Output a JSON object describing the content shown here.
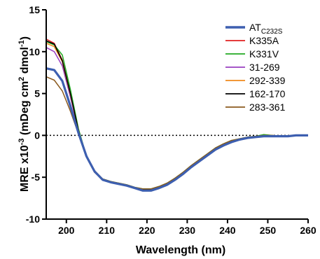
{
  "chart_data": {
    "type": "line",
    "xlabel": "Wavelength (nm)",
    "ylabel_prefix": "MRE x10",
    "ylabel_exp1": "-3",
    "ylabel_mid1": " (mDeg cm",
    "ylabel_exp2": "2",
    "ylabel_mid2": " dmol",
    "ylabel_exp3": "-1",
    "ylabel_suffix": ")",
    "xlim": [
      195,
      260
    ],
    "ylim": [
      -10,
      15
    ],
    "xticks": [
      200,
      210,
      220,
      230,
      240,
      250,
      260
    ],
    "yticks": [
      -10,
      -5,
      0,
      5,
      10,
      15
    ],
    "zero_line": "dotted",
    "legend_position": "top-right",
    "series": [
      {
        "name": "AT",
        "name_sub": "C232S",
        "color": "#3d5fb0",
        "thick": true,
        "x": [
          195,
          197,
          199,
          201,
          203,
          205,
          207,
          209,
          211,
          213,
          215,
          217,
          219,
          221,
          223,
          225,
          227,
          229,
          231,
          233,
          235,
          237,
          239,
          241,
          243,
          245,
          247,
          249,
          251,
          253,
          255,
          257,
          259,
          260
        ],
        "y": [
          8,
          7.8,
          6.5,
          3.5,
          0.3,
          -2.5,
          -4.3,
          -5.3,
          -5.6,
          -5.8,
          -6,
          -6.3,
          -6.6,
          -6.6,
          -6.3,
          -5.9,
          -5.3,
          -4.6,
          -3.8,
          -3.1,
          -2.4,
          -1.7,
          -1.2,
          -0.8,
          -0.5,
          -0.3,
          -0.2,
          -0.1,
          -0.1,
          -0.1,
          -0.1,
          0,
          0,
          0
        ]
      },
      {
        "name": "K335A",
        "color": "#e02020",
        "thick": false,
        "x": [
          195,
          197,
          199,
          201,
          203,
          205,
          207,
          209,
          211,
          213,
          215,
          217,
          219,
          221,
          223,
          225,
          227,
          229,
          231,
          233,
          235,
          237,
          239,
          241,
          243,
          245,
          247,
          249,
          251,
          253,
          255,
          257,
          259,
          260
        ],
        "y": [
          11.5,
          11,
          9,
          5,
          0.6,
          -2.6,
          -4.4,
          -5.3,
          -5.6,
          -5.8,
          -6,
          -6.3,
          -6.5,
          -6.5,
          -6.2,
          -5.8,
          -5.2,
          -4.5,
          -3.7,
          -3,
          -2.3,
          -1.6,
          -1.1,
          -0.7,
          -0.4,
          -0.3,
          -0.2,
          0,
          0,
          -0.1,
          -0.1,
          0,
          0,
          0
        ]
      },
      {
        "name": "K331V",
        "color": "#22aa22",
        "thick": false,
        "x": [
          195,
          197,
          199,
          201,
          203,
          205,
          207,
          209,
          211,
          213,
          215,
          217,
          219,
          221,
          223,
          225,
          227,
          229,
          231,
          233,
          235,
          237,
          239,
          241,
          243,
          245,
          247,
          249,
          251,
          253,
          255,
          257,
          259,
          260
        ],
        "y": [
          11.2,
          10.8,
          9.6,
          5.5,
          0.8,
          -2.5,
          -4.3,
          -5.2,
          -5.5,
          -5.7,
          -5.9,
          -6.2,
          -6.4,
          -6.4,
          -6.1,
          -5.7,
          -5.1,
          -4.4,
          -3.6,
          -2.9,
          -2.2,
          -1.5,
          -1,
          -0.6,
          -0.4,
          -0.2,
          -0.1,
          0.1,
          0,
          -0.1,
          -0.1,
          0,
          0,
          0
        ]
      },
      {
        "name": "31-269",
        "color": "#9a3fc0",
        "thick": false,
        "x": [
          195,
          197,
          199,
          201,
          203,
          205,
          207,
          209,
          211,
          213,
          215,
          217,
          219,
          221,
          223,
          225,
          227,
          229,
          231,
          233,
          235,
          237,
          239,
          241,
          243,
          245,
          247,
          249,
          251,
          253,
          255,
          257,
          259,
          260
        ],
        "y": [
          10.5,
          10,
          8.3,
          4.6,
          0.5,
          -2.6,
          -4.4,
          -5.3,
          -5.6,
          -5.8,
          -6,
          -6.3,
          -6.5,
          -6.5,
          -6.2,
          -5.8,
          -5.2,
          -4.5,
          -3.7,
          -3,
          -2.3,
          -1.6,
          -1.1,
          -0.7,
          -0.5,
          -0.3,
          -0.2,
          -0.1,
          -0.1,
          -0.1,
          -0.1,
          0,
          0,
          0
        ]
      },
      {
        "name": "292-339",
        "color": "#f08a1c",
        "thick": false,
        "x": [
          195,
          197,
          199,
          201,
          203,
          205,
          207,
          209,
          211,
          213,
          215,
          217,
          219,
          221,
          223,
          225,
          227,
          229,
          231,
          233,
          235,
          237,
          239,
          241,
          243,
          245,
          247,
          249,
          251,
          253,
          255,
          257,
          259,
          260
        ],
        "y": [
          11,
          10.6,
          8.8,
          4.9,
          0.6,
          -2.6,
          -4.4,
          -5.3,
          -5.6,
          -5.8,
          -6,
          -6.3,
          -6.5,
          -6.5,
          -6.2,
          -5.8,
          -5.2,
          -4.5,
          -3.7,
          -3,
          -2.3,
          -1.6,
          -1.1,
          -0.7,
          -0.5,
          -0.3,
          -0.2,
          -0.1,
          -0.1,
          -0.1,
          -0.1,
          0,
          0,
          0
        ]
      },
      {
        "name": "162-170",
        "color": "#000000",
        "thick": false,
        "x": [
          195,
          197,
          199,
          201,
          203,
          205,
          207,
          209,
          211,
          213,
          215,
          217,
          219,
          221,
          223,
          225,
          227,
          229,
          231,
          233,
          235,
          237,
          239,
          241,
          243,
          245,
          247,
          249,
          251,
          253,
          255,
          257,
          259,
          260
        ],
        "y": [
          11.3,
          10.9,
          8.9,
          5,
          0.6,
          -2.6,
          -4.4,
          -5.3,
          -5.6,
          -5.8,
          -6,
          -6.3,
          -6.5,
          -6.5,
          -6.2,
          -5.8,
          -5.2,
          -4.5,
          -3.7,
          -3,
          -2.3,
          -1.6,
          -1.1,
          -0.7,
          -0.5,
          -0.3,
          -0.2,
          -0.1,
          -0.1,
          -0.1,
          -0.1,
          0,
          0,
          0
        ]
      },
      {
        "name": "283-361",
        "color": "#8b5a1e",
        "thick": false,
        "x": [
          195,
          197,
          199,
          201,
          203,
          205,
          207,
          209,
          211,
          213,
          215,
          217,
          219,
          221,
          223,
          225,
          227,
          229,
          231,
          233,
          235,
          237,
          239,
          241,
          243,
          245,
          247,
          249,
          251,
          253,
          255,
          257,
          259,
          260
        ],
        "y": [
          7,
          6.6,
          5.3,
          2.9,
          0.2,
          -2.4,
          -4.2,
          -5.2,
          -5.5,
          -5.7,
          -5.9,
          -6.2,
          -6.4,
          -6.4,
          -6.1,
          -5.7,
          -5.1,
          -4.4,
          -3.6,
          -2.9,
          -2.2,
          -1.5,
          -1,
          -0.6,
          -0.4,
          -0.2,
          -0.1,
          0,
          0,
          -0.1,
          -0.1,
          0,
          0,
          0
        ]
      }
    ]
  }
}
